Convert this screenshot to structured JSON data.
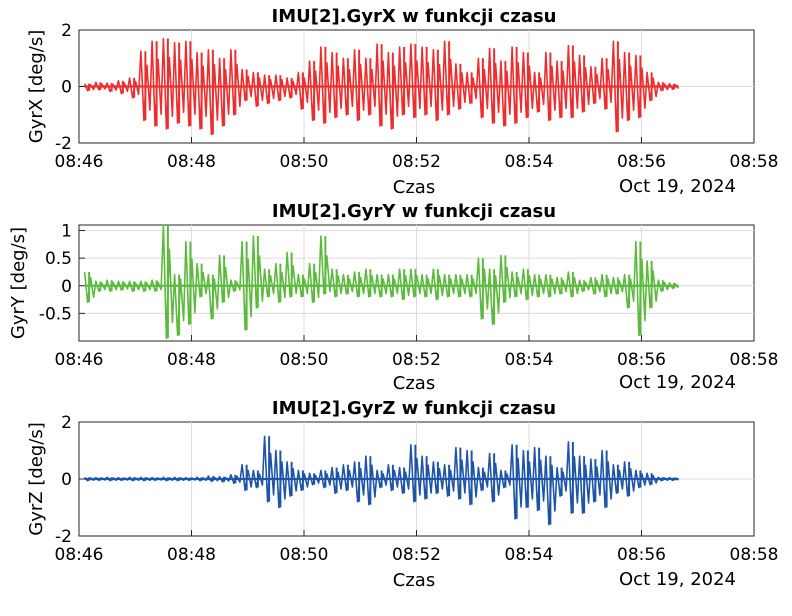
{
  "chart_data": [
    {
      "type": "line",
      "title": "IMU[2].GyrX w funkcji czasu",
      "xlabel": "Czas",
      "ylabel": "GyrX [deg/s]",
      "date_label": "Oct 19, 2024",
      "x_ticks": [
        "08:46",
        "08:48",
        "08:50",
        "08:52",
        "08:54",
        "08:56",
        "08:58"
      ],
      "y_ticks": [
        "-2",
        "0",
        "2"
      ],
      "y_tick_values": [
        -2,
        0,
        2
      ],
      "xlim": [
        "08:46",
        "08:58"
      ],
      "ylim": [
        -2,
        2
      ],
      "grid": true,
      "series": [
        {
          "color": "#ee2e2e",
          "x": [
            "08:46:06",
            "08:46:18",
            "08:46:30",
            "08:46:42",
            "08:46:54",
            "08:47:06",
            "08:47:18",
            "08:47:30",
            "08:47:42",
            "08:47:54",
            "08:48:06",
            "08:48:18",
            "08:48:30",
            "08:48:42",
            "08:48:54",
            "08:49:06",
            "08:49:18",
            "08:49:30",
            "08:49:42",
            "08:49:54",
            "08:50:06",
            "08:50:18",
            "08:50:30",
            "08:50:42",
            "08:50:54",
            "08:51:06",
            "08:51:18",
            "08:51:30",
            "08:51:42",
            "08:51:54",
            "08:52:06",
            "08:52:18",
            "08:52:30",
            "08:52:42",
            "08:52:54",
            "08:53:06",
            "08:53:18",
            "08:53:30",
            "08:53:42",
            "08:53:54",
            "08:54:06",
            "08:54:18",
            "08:54:30",
            "08:54:42",
            "08:54:54",
            "08:55:06",
            "08:55:18",
            "08:55:30",
            "08:55:42",
            "08:55:54",
            "08:56:06",
            "08:56:18",
            "08:56:30"
          ],
          "y_max": [
            0.1,
            0.15,
            0.12,
            0.2,
            0.3,
            1.25,
            1.6,
            1.7,
            1.55,
            1.6,
            1.2,
            1.3,
            1.0,
            1.3,
            0.6,
            0.5,
            0.4,
            0.4,
            0.3,
            0.5,
            0.9,
            1.4,
            1.2,
            1.0,
            1.3,
            1.0,
            1.5,
            1.2,
            1.4,
            1.5,
            1.4,
            1.3,
            1.6,
            0.8,
            0.5,
            1.0,
            1.35,
            0.9,
            1.4,
            1.2,
            0.5,
            1.2,
            0.9,
            1.45,
            1.1,
            0.7,
            1.0,
            1.6,
            1.2,
            1.1,
            0.5,
            0.15,
            0.1
          ],
          "y_min": [
            -0.15,
            -0.12,
            -0.18,
            -0.25,
            -0.4,
            -1.2,
            -1.4,
            -1.5,
            -1.3,
            -1.4,
            -1.5,
            -1.7,
            -1.4,
            -1.0,
            -0.5,
            -0.7,
            -0.6,
            -0.5,
            -0.4,
            -0.8,
            -1.2,
            -1.3,
            -1.1,
            -1.0,
            -1.2,
            -1.0,
            -1.4,
            -1.5,
            -1.0,
            -1.1,
            -1.0,
            -1.2,
            -1.0,
            -0.8,
            -0.6,
            -1.1,
            -1.3,
            -1.4,
            -1.3,
            -1.1,
            -0.9,
            -1.2,
            -1.1,
            -1.1,
            -0.9,
            -0.6,
            -0.8,
            -1.6,
            -1.2,
            -1.1,
            -0.5,
            -0.15,
            -0.1
          ]
        }
      ]
    },
    {
      "type": "line",
      "title": "IMU[2].GyrY w funkcji czasu",
      "xlabel": "Czas",
      "ylabel": "GyrY [deg/s]",
      "date_label": "Oct 19, 2024",
      "x_ticks": [
        "08:46",
        "08:48",
        "08:50",
        "08:52",
        "08:54",
        "08:56",
        "08:58"
      ],
      "y_ticks": [
        "-0.5",
        "0",
        "0.5",
        "1"
      ],
      "y_tick_values": [
        -0.5,
        0,
        0.5,
        1
      ],
      "xlim": [
        "08:46",
        "08:58"
      ],
      "ylim": [
        -1,
        1.1
      ],
      "grid": true,
      "series": [
        {
          "color": "#5dba3f",
          "x": [
            "08:46:06",
            "08:46:18",
            "08:46:30",
            "08:46:42",
            "08:46:54",
            "08:47:06",
            "08:47:18",
            "08:47:30",
            "08:47:42",
            "08:47:54",
            "08:48:06",
            "08:48:18",
            "08:48:30",
            "08:48:42",
            "08:48:54",
            "08:49:06",
            "08:49:18",
            "08:49:30",
            "08:49:42",
            "08:49:54",
            "08:50:06",
            "08:50:18",
            "08:50:30",
            "08:50:42",
            "08:50:54",
            "08:51:06",
            "08:51:18",
            "08:51:30",
            "08:51:42",
            "08:51:54",
            "08:52:06",
            "08:52:18",
            "08:52:30",
            "08:52:42",
            "08:52:54",
            "08:53:06",
            "08:53:18",
            "08:53:30",
            "08:53:42",
            "08:53:54",
            "08:54:06",
            "08:54:18",
            "08:54:30",
            "08:54:42",
            "08:54:54",
            "08:55:06",
            "08:55:18",
            "08:55:30",
            "08:55:42",
            "08:55:54",
            "08:56:06",
            "08:56:18",
            "08:56:30"
          ],
          "y_max": [
            0.25,
            0.08,
            0.1,
            0.08,
            0.08,
            0.08,
            0.1,
            1.1,
            0.2,
            0.8,
            0.4,
            0.2,
            0.55,
            0.1,
            0.8,
            0.9,
            0.3,
            0.4,
            0.6,
            0.2,
            0.4,
            0.9,
            0.3,
            0.2,
            0.25,
            0.3,
            0.2,
            0.2,
            0.3,
            0.3,
            0.2,
            0.3,
            0.2,
            0.2,
            0.2,
            0.5,
            0.3,
            0.55,
            0.25,
            0.3,
            0.2,
            0.2,
            0.15,
            0.25,
            0.1,
            0.15,
            0.2,
            0.15,
            0.2,
            0.8,
            0.45,
            0.1,
            0.05
          ],
          "y_min": [
            -0.3,
            -0.1,
            -0.1,
            -0.08,
            -0.1,
            -0.1,
            -0.1,
            -0.95,
            -0.9,
            -0.7,
            -0.2,
            -0.6,
            -0.3,
            -0.1,
            -0.8,
            -0.4,
            -0.2,
            -0.3,
            -0.2,
            -0.2,
            -0.3,
            -0.15,
            -0.2,
            -0.15,
            -0.2,
            -0.2,
            -0.2,
            -0.2,
            -0.25,
            -0.2,
            -0.2,
            -0.25,
            -0.2,
            -0.2,
            -0.2,
            -0.6,
            -0.7,
            -0.3,
            -0.2,
            -0.25,
            -0.2,
            -0.2,
            -0.15,
            -0.2,
            -0.1,
            -0.15,
            -0.2,
            -0.15,
            -0.4,
            -0.9,
            -0.4,
            -0.1,
            -0.05
          ]
        }
      ]
    },
    {
      "type": "line",
      "title": "IMU[2].GyrZ w funkcji czasu",
      "xlabel": "Czas",
      "ylabel": "GyrZ [deg/s]",
      "date_label": "Oct 19, 2024",
      "x_ticks": [
        "08:46",
        "08:48",
        "08:50",
        "08:52",
        "08:54",
        "08:56",
        "08:58"
      ],
      "y_ticks": [
        "-2",
        "0",
        "2"
      ],
      "y_tick_values": [
        -2,
        0,
        2
      ],
      "xlim": [
        "08:46",
        "08:58"
      ],
      "ylim": [
        -2,
        2
      ],
      "grid": true,
      "series": [
        {
          "color": "#1f55a8",
          "x": [
            "08:46:06",
            "08:46:18",
            "08:46:30",
            "08:46:42",
            "08:46:54",
            "08:47:06",
            "08:47:18",
            "08:47:30",
            "08:47:42",
            "08:47:54",
            "08:48:06",
            "08:48:18",
            "08:48:30",
            "08:48:42",
            "08:48:54",
            "08:49:06",
            "08:49:18",
            "08:49:30",
            "08:49:42",
            "08:49:54",
            "08:50:06",
            "08:50:18",
            "08:50:30",
            "08:50:42",
            "08:50:54",
            "08:51:06",
            "08:51:18",
            "08:51:30",
            "08:51:42",
            "08:51:54",
            "08:52:06",
            "08:52:18",
            "08:52:30",
            "08:52:42",
            "08:52:54",
            "08:53:06",
            "08:53:18",
            "08:53:30",
            "08:53:42",
            "08:53:54",
            "08:54:06",
            "08:54:18",
            "08:54:30",
            "08:54:42",
            "08:54:54",
            "08:55:06",
            "08:55:18",
            "08:55:30",
            "08:55:42",
            "08:55:54",
            "08:56:06",
            "08:56:18",
            "08:56:30"
          ],
          "y_max": [
            0.06,
            0.05,
            0.06,
            0.05,
            0.06,
            0.06,
            0.05,
            0.06,
            0.06,
            0.05,
            0.06,
            0.1,
            0.08,
            0.15,
            0.5,
            0.3,
            1.5,
            1.0,
            0.6,
            0.3,
            0.2,
            0.3,
            0.4,
            0.5,
            0.6,
            0.8,
            0.3,
            0.5,
            0.4,
            1.2,
            0.8,
            0.6,
            0.5,
            1.1,
            1.0,
            0.4,
            0.9,
            0.3,
            1.2,
            1.0,
            1.1,
            0.8,
            0.4,
            1.3,
            0.8,
            0.7,
            1.0,
            0.5,
            0.6,
            0.3,
            0.2,
            0.06,
            0.05
          ],
          "y_min": [
            -0.06,
            -0.05,
            -0.06,
            -0.05,
            -0.06,
            -0.06,
            -0.05,
            -0.06,
            -0.06,
            -0.05,
            -0.06,
            -0.08,
            -0.1,
            -0.15,
            -0.4,
            -0.3,
            -0.8,
            -1.0,
            -0.6,
            -0.4,
            -0.2,
            -0.3,
            -0.5,
            -0.4,
            -0.8,
            -0.9,
            -0.3,
            -0.4,
            -0.5,
            -0.8,
            -0.7,
            -0.5,
            -0.6,
            -0.7,
            -0.9,
            -0.4,
            -0.8,
            -0.3,
            -1.4,
            -1.0,
            -1.1,
            -1.6,
            -0.6,
            -1.2,
            -1.2,
            -0.8,
            -1.0,
            -0.5,
            -0.6,
            -0.3,
            -0.2,
            -0.06,
            -0.05
          ]
        }
      ]
    }
  ]
}
